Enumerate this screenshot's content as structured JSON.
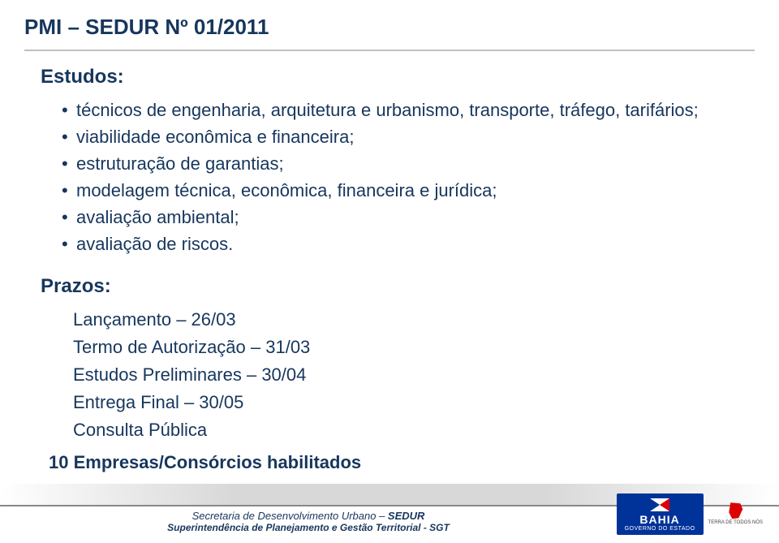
{
  "slide": {
    "title": "PMI – SEDUR Nº 01/2011"
  },
  "estudos": {
    "heading": "Estudos:",
    "items": [
      "técnicos de engenharia, arquitetura e urbanismo, transporte, tráfego, tarifários;",
      "viabilidade econômica e financeira;",
      "estruturação de garantias;",
      "modelagem técnica, econômica, financeira e jurídica;",
      "avaliação ambiental;",
      "avaliação de riscos."
    ]
  },
  "prazos": {
    "heading": "Prazos:",
    "items": [
      "Lançamento – 26/03",
      "Termo de Autorização – 31/03",
      "Estudos Preliminares – 30/04",
      "Entrega Final – 30/05",
      "Consulta Pública"
    ]
  },
  "final_line": "10 Empresas/Consórcios habilitados",
  "footer": {
    "line1_prefix": "Secretaria de Desenvolvimento Urbano – ",
    "line1_bold": "SEDUR",
    "line2": "Superintendência de Planejamento e Gestão Territorial - SGT"
  },
  "logo": {
    "bahia": "BAHIA",
    "governo": "GOVERNO DO ESTADO",
    "terra1": "TERRA DE TODOS NÓS"
  },
  "colors": {
    "primary_text": "#17365d",
    "underline": "#c0c0c0",
    "logo_bg": "#003399",
    "logo_red": "#d00"
  }
}
